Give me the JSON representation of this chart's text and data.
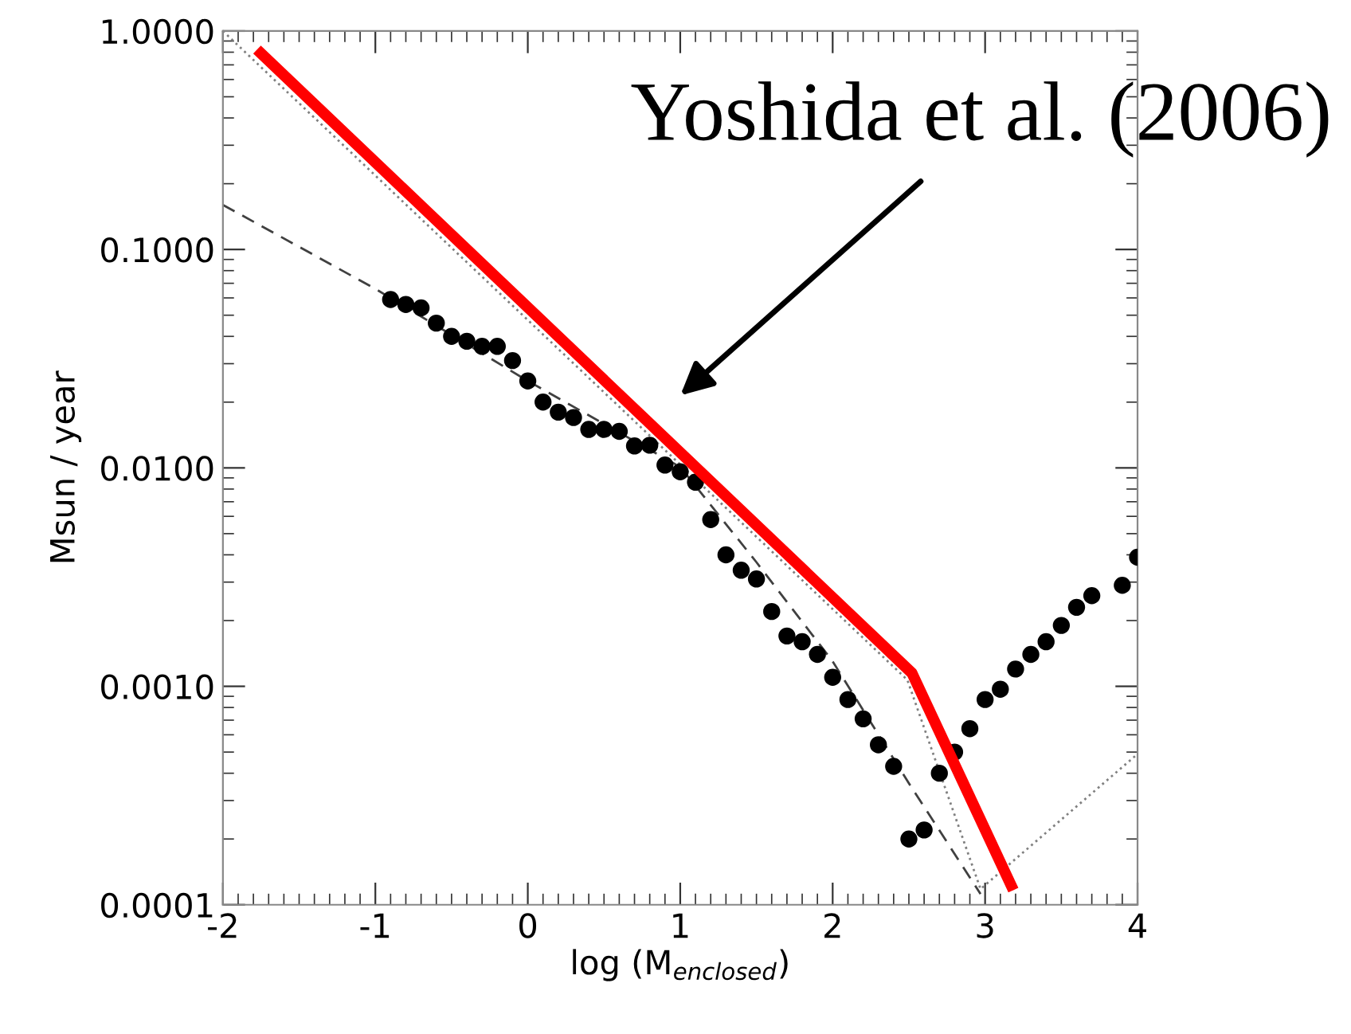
{
  "chart_data": {
    "type": "scatter",
    "xlabel": "log (M$_{enclosed}$)",
    "ylabel": "Msun / year",
    "log": "y",
    "xlim": [
      -2,
      4
    ],
    "ylim": [
      0.0001,
      1
    ],
    "xticks": [
      -2,
      -1,
      0,
      1,
      2,
      3,
      4
    ],
    "yticks": [
      {
        "value": 1,
        "label": "1.0000"
      },
      {
        "value": 0.1,
        "label": "0.1000"
      },
      {
        "value": 0.01,
        "label": "0.0100"
      },
      {
        "value": 0.001,
        "label": "0.0010"
      },
      {
        "value": 0.0001,
        "label": "0.0001"
      }
    ],
    "grid": false,
    "legend": false,
    "series": [
      {
        "marker": "circle",
        "color": "#000000",
        "x": [
          -0.9,
          -0.8,
          -0.7,
          -0.6,
          -0.5,
          -0.4,
          -0.3,
          -0.2,
          -0.1,
          0.0,
          0.1,
          0.2,
          0.3,
          0.4,
          0.5,
          0.6,
          0.7,
          0.8,
          0.9,
          1.0,
          1.1,
          1.2,
          1.3,
          1.4,
          1.5,
          1.6,
          1.7,
          1.8,
          1.9,
          2.0,
          2.1,
          2.2,
          2.3,
          2.4,
          2.5,
          2.6,
          2.7,
          2.8,
          2.9,
          3.0,
          3.1,
          3.2,
          3.3,
          3.4,
          3.5,
          3.6,
          3.7,
          3.9,
          4.0
        ],
        "values": [
          0.059,
          0.056,
          0.054,
          0.046,
          0.04,
          0.038,
          0.036,
          0.036,
          0.031,
          0.025,
          0.02,
          0.018,
          0.017,
          0.015,
          0.015,
          0.0147,
          0.0126,
          0.0127,
          0.0103,
          0.0096,
          0.0086,
          0.0058,
          0.004,
          0.0034,
          0.0031,
          0.0022,
          0.0017,
          0.0016,
          0.0014,
          0.0011,
          0.00087,
          0.00071,
          0.00054,
          0.00043,
          0.0002,
          0.00022,
          0.0004,
          0.0005,
          0.00064,
          0.00087,
          0.00097,
          0.0012,
          0.0014,
          0.0016,
          0.0019,
          0.0023,
          0.0026,
          0.0029,
          0.0039
        ]
      },
      {
        "type": "line",
        "line_style": "dashed",
        "color": "#404040",
        "x": [
          -2,
          -1,
          0,
          1,
          1.5,
          2,
          2.5,
          2.97
        ],
        "values": [
          0.16,
          0.066,
          0.025,
          0.0101,
          0.0037,
          0.0013,
          0.00036,
          0.000112
        ]
      },
      {
        "type": "line",
        "line_style": "dotted",
        "color": "#808080",
        "x": [
          -2,
          2.49,
          2.97,
          4
        ],
        "values": [
          1.0,
          0.00107,
          0.000118,
          0.00049
        ]
      },
      {
        "type": "line",
        "line_style": "solid",
        "color": "#ff0000",
        "x": [
          -1.75,
          2.52,
          3.17
        ],
        "values": [
          0.79,
          0.00115,
          0.000123
        ]
      }
    ],
    "annotations": [
      "Yoshida et al. (2006)"
    ]
  }
}
